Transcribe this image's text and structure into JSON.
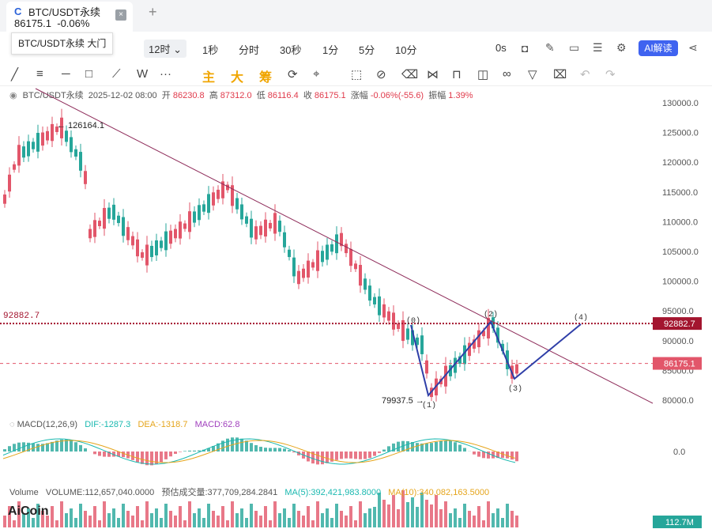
{
  "tab": {
    "name": "BTC/USDT永续",
    "price": "86175.1",
    "change": "-0.06%",
    "close": "×",
    "new_tab": "+"
  },
  "tooltip": "BTC/USDT永续 大门",
  "toolbar": {
    "intervals": [
      "12时",
      "1秒",
      "分时",
      "30秒",
      "1分",
      "5分",
      "10分"
    ],
    "selected_interval": "12时",
    "right_label": "0s",
    "ai_button": "AI解读"
  },
  "drawing_toolbar": {
    "colored_labels": [
      "主",
      "大",
      "筹"
    ],
    "w_label": "W",
    "more": "···"
  },
  "ohlc": {
    "symbol": "BTC/USDT永续",
    "datetime": "2025-12-02 08:00",
    "open_label": "开",
    "open": "86230.8",
    "high_label": "高",
    "high": "87312.0",
    "low_label": "低",
    "low": "86116.4",
    "close_label": "收",
    "close": "86175.1",
    "change_label": "涨幅",
    "change": "-0.06%(-55.6)",
    "amplitude_label": "振幅",
    "amplitude": "1.39%"
  },
  "chart_data": {
    "type": "candlestick",
    "y_axis": {
      "min": 78000,
      "max": 131000,
      "ticks": [
        "130000.0",
        "125000.0",
        "120000.0",
        "115000.0",
        "110000.0",
        "105000.0",
        "100000.0",
        "95000.0",
        "90000.0",
        "85000.0",
        "80000.0"
      ]
    },
    "annotations": {
      "high_label": "126164.1",
      "low_label": "79937.5",
      "level_label": "92882.7",
      "level_value": 92882.7,
      "last_price_label": "86175.1",
      "last_price": 86175.1
    },
    "wave_labels": [
      "(0)",
      "(1)",
      "(2)",
      "(3)",
      "(4)"
    ],
    "macd": {
      "title": "MACD(12,26,9)",
      "dif": "DIF:-1287.3",
      "dea": "DEA:-1318.7",
      "macd": "MACD:62.8",
      "zero_tick": "0.0"
    },
    "volume": {
      "title": "Volume",
      "volume": "VOLUME:112,657,040.0000",
      "estimate": "预估成交量:377,709,284.2841",
      "ma5": "MA(5):392,421,983.8000",
      "ma10": "MA(10):340,082,163.5000",
      "last_tag": "112.7M"
    }
  },
  "colors": {
    "up": "#26a69a",
    "down": "#e2566a",
    "trend": "#8e2c5a",
    "wave": "#2f3fa8",
    "level": "#a3152f"
  },
  "footer_logo": "AiCoin"
}
